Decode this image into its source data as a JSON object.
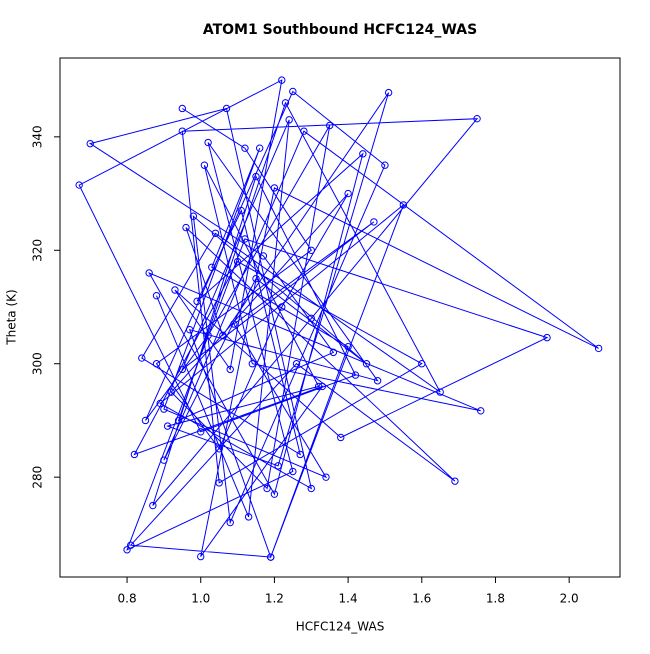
{
  "chart_data": {
    "type": "line",
    "title": "ATOM1 Southbound HCFC124_WAS",
    "x_label": "HCFC124_WAS",
    "y_label": "Theta (K)",
    "x": [
      0.95,
      1.12,
      1.3,
      0.88,
      1.05,
      1.22,
      1.4,
      0.92,
      1.18,
      1.35,
      1.02,
      0.85,
      1.25,
      1.5,
      1.08,
      0.98,
      1.45,
      1.15,
      0.9,
      1.28,
      2.08,
      1.2,
      1.0,
      1.33,
      0.82,
      1.1,
      1.6,
      1.05,
      0.95,
      1.75,
      1.3,
      0.87,
      1.15,
      1.42,
      1.0,
      0.67,
      1.22,
      1.08,
      0.93,
      1.38,
      1.94,
      1.12,
      0.8,
      1.25,
      1.02,
      1.48,
      0.97,
      1.19,
      1.55,
      0.89,
      1.3,
      1.07,
      0.7,
      1.17,
      1.36,
      0.94,
      1.23,
      1.65,
      1.04,
      0.84,
      1.27,
      1.11,
      0.99,
      1.44,
      1.2,
      0.86,
      1.76,
      1.14,
      1.01,
      1.32,
      0.91,
      1.21,
      1.51,
      1.06,
      0.96,
      1.69,
      1.26,
      0.81,
      1.19,
      1.4,
      1.03,
      1.16,
      0.9,
      1.34,
      1.09,
      1.47,
      0.95,
      1.24,
      1.13,
      0.88
    ],
    "series": [
      {
        "color": "#0000ff",
        "values": [
          345,
          338,
          320,
          300,
          285,
          310,
          330,
          295,
          278,
          342,
          305,
          290,
          348,
          335,
          272,
          326,
          300,
          315,
          283,
          341,
          302.7,
          331,
          266,
          296,
          284,
          318,
          300,
          279,
          341,
          343.2,
          308,
          275,
          333,
          298,
          288,
          331.5,
          350,
          299,
          313,
          287,
          304.6,
          322,
          267.2,
          281,
          339,
          297,
          306,
          265.9,
          328,
          293,
          278,
          345,
          338.8,
          319,
          302,
          290,
          346,
          295,
          323,
          301,
          284,
          327,
          311,
          337,
          277,
          316,
          291.7,
          300,
          335,
          296,
          289,
          282,
          347.8,
          305,
          324,
          279.3,
          300,
          268,
          265.9,
          303,
          317,
          338,
          292,
          280,
          307,
          325,
          299,
          343,
          273,
          312
        ]
      }
    ],
    "xlim": [
      0.618,
      2.138
    ],
    "ylim": [
      262.4,
      353.9
    ],
    "xticks": [
      0.8,
      {
        "value": 1,
        "label": "1.0"
      },
      1.2,
      1.4,
      1.6,
      1.8,
      {
        "value": 2,
        "label": "2.0"
      }
    ],
    "yticks": [
      280,
      300,
      320,
      340
    ]
  }
}
